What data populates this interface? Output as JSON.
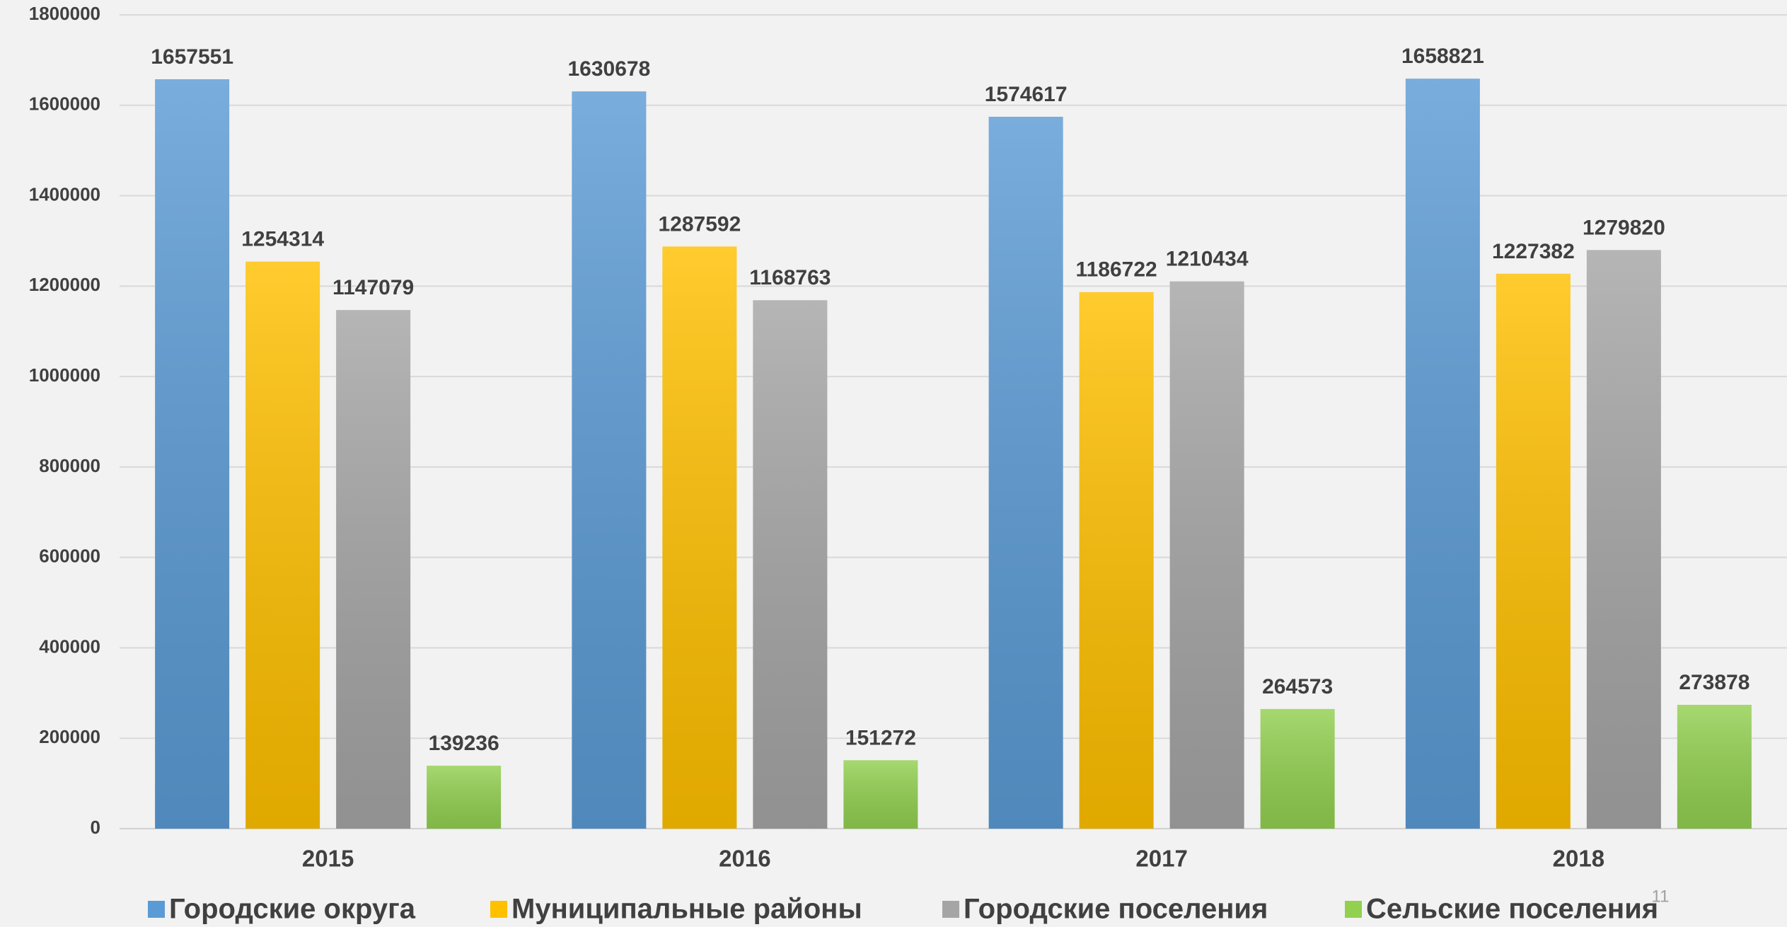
{
  "chart_data": {
    "type": "bar",
    "categories": [
      "2015",
      "2016",
      "2017",
      "2018"
    ],
    "series": [
      {
        "name": "Городские округа",
        "color": "#5b9bd5",
        "values": [
          1657551,
          1630678,
          1574617,
          1658821
        ]
      },
      {
        "name": "Муниципальные районы",
        "color": "#ffc000",
        "values": [
          1254314,
          1287592,
          1186722,
          1227382
        ]
      },
      {
        "name": "Городские поселения",
        "color": "#a5a5a5",
        "values": [
          1147079,
          1168763,
          1210434,
          1279820
        ]
      },
      {
        "name": "Сельские поселения",
        "color": "#92d050",
        "values": [
          139236,
          151272,
          264573,
          273878
        ]
      }
    ],
    "ylim": [
      0,
      1800000
    ],
    "yticks": [
      0,
      200000,
      400000,
      600000,
      800000,
      1000000,
      1200000,
      1400000,
      1600000,
      1800000
    ],
    "grid": true,
    "legend": "bottom"
  },
  "page_number": "11"
}
